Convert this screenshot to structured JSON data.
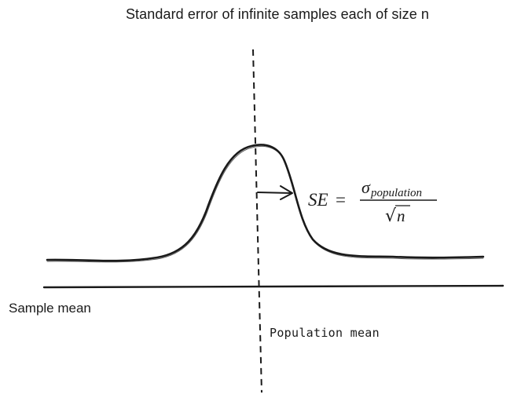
{
  "title": "Standard error of infinite samples each of size n",
  "axis_label": "Sample mean",
  "marker_label": "Population mean",
  "formula": {
    "lhs": "SE",
    "equals": "=",
    "numerator_symbol": "σ",
    "numerator_subscript": "population",
    "denominator_radical": "√",
    "denominator_symbol": "n"
  },
  "colors": {
    "ink": "#1a1a1a"
  }
}
